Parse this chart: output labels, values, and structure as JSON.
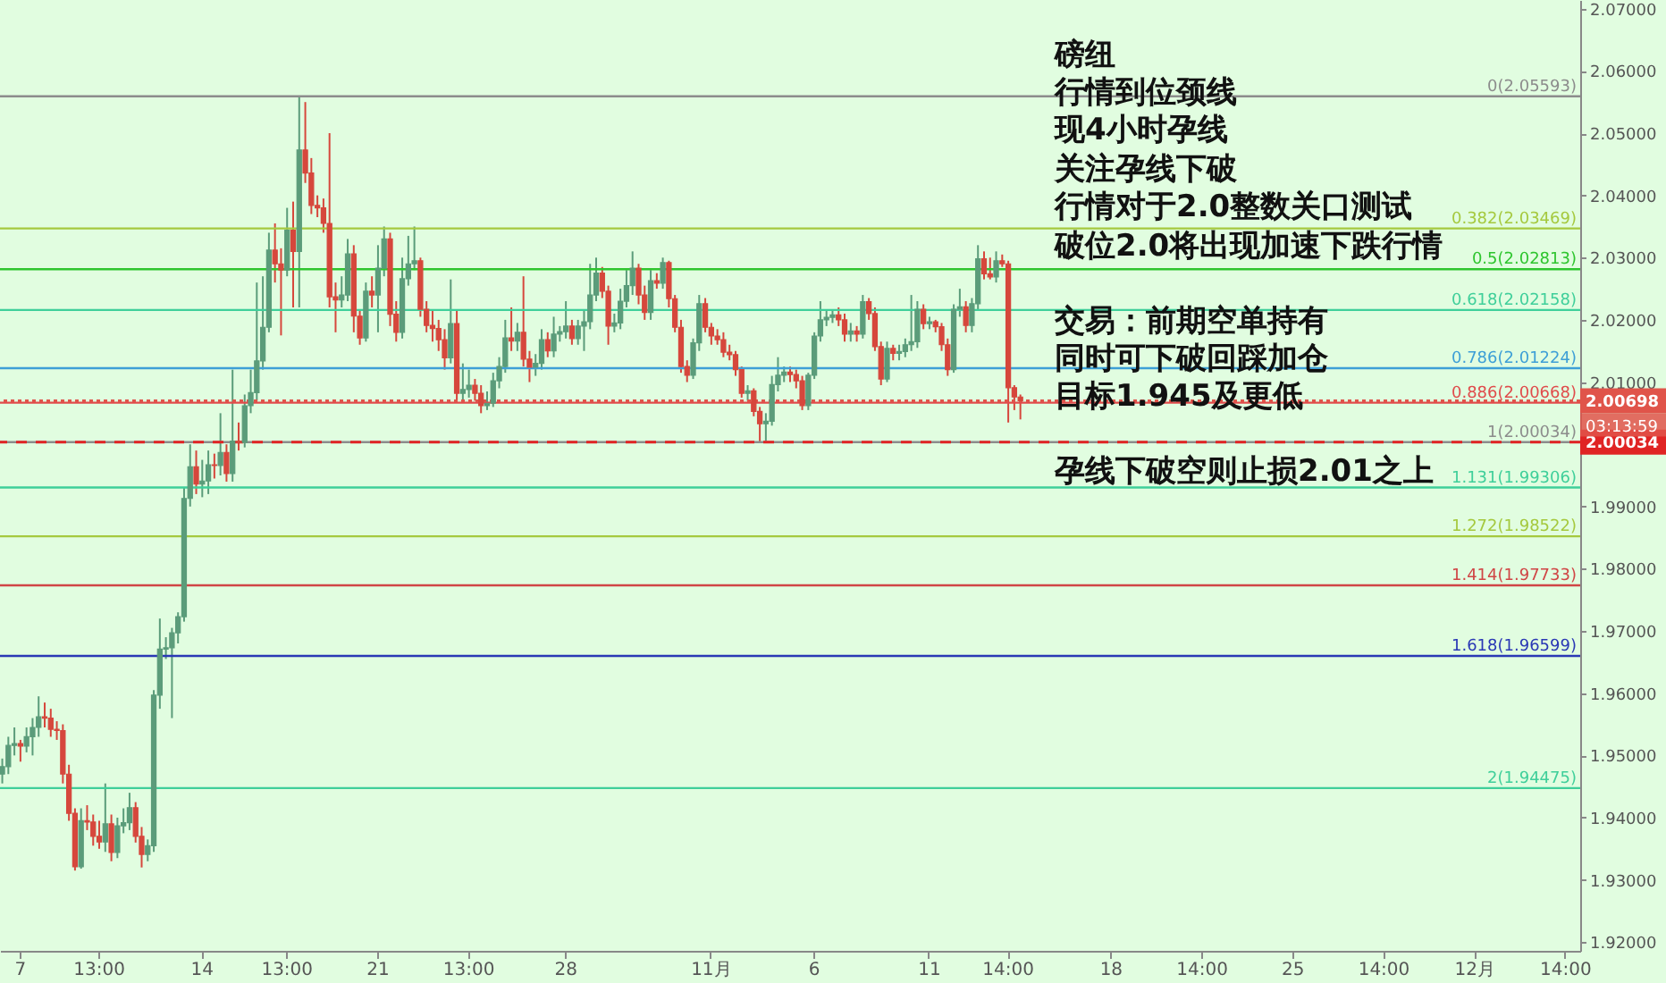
{
  "chart_data": {
    "type": "candlestick",
    "categories": [
      null,
      null,
      null,
      "7",
      null,
      null,
      null,
      null,
      null,
      null,
      null,
      null,
      null,
      null,
      null,
      null,
      "13:00",
      null,
      null,
      null,
      null,
      null,
      null,
      null,
      null,
      null,
      null,
      null,
      null,
      null,
      null,
      null,
      null,
      "14",
      null,
      null,
      null,
      null,
      null,
      null,
      null,
      null,
      null,
      null,
      null,
      null,
      null,
      "13:00",
      null,
      null,
      null,
      null,
      null,
      null,
      null,
      null,
      null,
      null,
      null,
      null,
      null,
      null,
      "21",
      null,
      null,
      null,
      null,
      null,
      null,
      null,
      null,
      null,
      null,
      null,
      null,
      null,
      null,
      "13:00",
      null,
      null,
      null,
      null,
      null,
      null,
      null,
      null,
      null,
      null,
      null,
      null,
      null,
      null,
      null,
      "28",
      null,
      null,
      null,
      null,
      null,
      null,
      null,
      null,
      null,
      null,
      null,
      null,
      null,
      null,
      null,
      null,
      null,
      null,
      null,
      null,
      null,
      null,
      null,
      "11月",
      null,
      null,
      null,
      null,
      null,
      null,
      null,
      null,
      null,
      null,
      null,
      null,
      null,
      null,
      null,
      null,
      "6",
      null,
      null,
      null,
      null,
      null,
      null,
      null,
      null,
      null,
      null,
      null,
      null,
      null,
      null,
      null,
      null,
      null,
      null,
      "11",
      null,
      null,
      null,
      null,
      null,
      null,
      null,
      null,
      null,
      null,
      null,
      null,
      "14:00",
      null,
      null,
      null,
      null,
      null,
      null,
      null,
      null,
      null,
      null,
      null,
      null,
      null,
      null,
      null,
      null,
      "18",
      null,
      null,
      null,
      null,
      null,
      null,
      null,
      null,
      null,
      null,
      null,
      null,
      null,
      null,
      "14:00",
      null,
      null,
      null,
      null,
      null,
      null,
      null,
      null,
      null,
      null,
      null,
      null,
      null,
      null,
      "25",
      null,
      null,
      null,
      null,
      null,
      null,
      null,
      null,
      null,
      null,
      null,
      null,
      null,
      null,
      "14:00",
      null,
      null,
      null,
      null,
      null,
      null,
      null,
      null,
      null,
      null,
      null,
      null,
      null,
      null,
      "12月",
      null,
      null,
      null,
      null,
      null,
      null,
      null,
      null,
      null,
      null,
      null,
      null,
      null,
      null,
      "14:00",
      null,
      null
    ],
    "ohlc": [
      [
        1.947,
        1.9495,
        1.9455,
        1.9482
      ],
      [
        1.9482,
        1.953,
        1.947,
        1.9516
      ],
      [
        1.9516,
        1.9545,
        1.95,
        1.9519
      ],
      [
        1.9519,
        1.9525,
        1.949,
        1.9515
      ],
      [
        1.9515,
        1.9545,
        1.9505,
        1.953
      ],
      [
        1.953,
        1.956,
        1.95,
        1.9545
      ],
      [
        1.9545,
        1.9595,
        1.953,
        1.9562
      ],
      [
        1.9562,
        1.9585,
        1.9545,
        1.956
      ],
      [
        1.956,
        1.9575,
        1.953,
        1.9542
      ],
      [
        1.9542,
        1.9555,
        1.9525,
        1.954
      ],
      [
        1.954,
        1.955,
        1.9455,
        1.947
      ],
      [
        1.947,
        1.9485,
        1.9395,
        1.9407
      ],
      [
        1.9407,
        1.9415,
        1.9315,
        1.9321
      ],
      [
        1.9321,
        1.9415,
        1.9318,
        1.9395
      ],
      [
        1.9395,
        1.942,
        1.938,
        1.9393
      ],
      [
        1.9393,
        1.9405,
        1.9355,
        1.937
      ],
      [
        1.937,
        1.9395,
        1.935,
        1.9361
      ],
      [
        1.9361,
        1.9455,
        1.9345,
        1.939
      ],
      [
        1.939,
        1.9405,
        1.933,
        1.9344
      ],
      [
        1.9344,
        1.94,
        1.9335,
        1.9387
      ],
      [
        1.9387,
        1.9415,
        1.9375,
        1.9392
      ],
      [
        1.9392,
        1.944,
        1.938,
        1.9416
      ],
      [
        1.9416,
        1.9425,
        1.936,
        1.937
      ],
      [
        1.937,
        1.9385,
        1.932,
        1.9341
      ],
      [
        1.9341,
        1.9365,
        1.933,
        1.9355
      ],
      [
        1.9355,
        1.9605,
        1.9345,
        1.9597
      ],
      [
        1.9597,
        1.972,
        1.9575,
        1.9671
      ],
      [
        1.9671,
        1.969,
        1.9655,
        1.9673
      ],
      [
        1.9673,
        1.9705,
        1.956,
        1.9697
      ],
      [
        1.9697,
        1.973,
        1.968,
        1.9723
      ],
      [
        1.9723,
        1.993,
        1.9715,
        1.9913
      ],
      [
        1.9913,
        2.0,
        1.99,
        1.9964
      ],
      [
        1.9964,
        1.999,
        1.992,
        1.9936
      ],
      [
        1.9936,
        1.9975,
        1.9915,
        1.9941
      ],
      [
        1.9941,
        1.999,
        1.992,
        1.9967
      ],
      [
        1.9967,
        1.9985,
        1.9945,
        1.9966
      ],
      [
        1.9966,
        2.005,
        1.995,
        1.9987
      ],
      [
        1.9987,
        2.0,
        1.994,
        1.9953
      ],
      [
        1.9953,
        2.012,
        1.994,
        2.0005
      ],
      [
        2.0005,
        2.0035,
        1.999,
        2.0003
      ],
      [
        2.0003,
        2.008,
        1.9995,
        2.0062
      ],
      [
        2.0062,
        2.012,
        2.005,
        2.0083
      ],
      [
        2.0083,
        2.026,
        2.007,
        2.0134
      ],
      [
        2.0134,
        2.027,
        2.012,
        2.0188
      ],
      [
        2.0188,
        2.034,
        2.018,
        2.0312
      ],
      [
        2.0312,
        2.0355,
        2.026,
        2.029
      ],
      [
        2.029,
        2.0315,
        2.0175,
        2.028
      ],
      [
        2.028,
        2.038,
        2.027,
        2.0344
      ],
      [
        2.0344,
        2.039,
        2.022,
        2.031
      ],
      [
        2.031,
        2.0559,
        2.022,
        2.0473
      ],
      [
        2.0473,
        2.055,
        2.042,
        2.0436
      ],
      [
        2.0436,
        2.046,
        2.037,
        2.0384
      ],
      [
        2.0384,
        2.04,
        2.0365,
        2.038
      ],
      [
        2.038,
        2.0395,
        2.034,
        2.0355
      ],
      [
        2.0355,
        2.05,
        2.022,
        2.0237
      ],
      [
        2.0237,
        2.026,
        2.018,
        2.0232
      ],
      [
        2.0232,
        2.027,
        2.022,
        2.024
      ],
      [
        2.024,
        2.033,
        2.023,
        2.0306
      ],
      [
        2.0306,
        2.032,
        2.018,
        2.0206
      ],
      [
        2.0206,
        2.0215,
        2.016,
        2.0171
      ],
      [
        2.0171,
        2.026,
        2.0165,
        2.0246
      ],
      [
        2.0246,
        2.027,
        2.022,
        2.024
      ],
      [
        2.024,
        2.032,
        2.018,
        2.0283
      ],
      [
        2.0283,
        2.035,
        2.027,
        2.033
      ],
      [
        2.033,
        2.034,
        2.019,
        2.0209
      ],
      [
        2.0209,
        2.023,
        2.0165,
        2.018
      ],
      [
        2.018,
        2.03,
        2.017,
        2.0266
      ],
      [
        2.0266,
        2.0335,
        2.0255,
        2.029
      ],
      [
        2.029,
        2.035,
        2.028,
        2.0295
      ],
      [
        2.0295,
        2.03,
        2.0205,
        2.0217
      ],
      [
        2.0217,
        2.023,
        2.018,
        2.0191
      ],
      [
        2.0191,
        2.0215,
        2.0165,
        2.0186
      ],
      [
        2.0186,
        2.02,
        2.015,
        2.0168
      ],
      [
        2.0168,
        2.0185,
        2.012,
        2.0139
      ],
      [
        2.0139,
        2.0265,
        2.013,
        2.0194
      ],
      [
        2.0194,
        2.0215,
        2.007,
        2.0082
      ],
      [
        2.0082,
        2.013,
        2.007,
        2.0088
      ],
      [
        2.0088,
        2.012,
        2.0075,
        2.0095
      ],
      [
        2.0095,
        2.0105,
        2.007,
        2.0082
      ],
      [
        2.0082,
        2.0095,
        2.005,
        2.0062
      ],
      [
        2.0062,
        2.0085,
        2.0055,
        2.0066
      ],
      [
        2.0066,
        2.0115,
        2.006,
        2.0102
      ],
      [
        2.0102,
        2.014,
        2.009,
        2.0125
      ],
      [
        2.0125,
        2.02,
        2.0115,
        2.0171
      ],
      [
        2.0171,
        2.022,
        2.015,
        2.0166
      ],
      [
        2.0166,
        2.0195,
        2.015,
        2.018
      ],
      [
        2.018,
        2.027,
        2.0125,
        2.0137
      ],
      [
        2.0137,
        2.015,
        2.01,
        2.0124
      ],
      [
        2.0124,
        2.0145,
        2.011,
        2.013
      ],
      [
        2.013,
        2.0185,
        2.012,
        2.0168
      ],
      [
        2.0168,
        2.018,
        2.014,
        2.015
      ],
      [
        2.015,
        2.0205,
        2.014,
        2.0177
      ],
      [
        2.0177,
        2.019,
        2.0165,
        2.0181
      ],
      [
        2.0181,
        2.023,
        2.017,
        2.019
      ],
      [
        2.019,
        2.02,
        2.016,
        2.017
      ],
      [
        2.017,
        2.02,
        2.016,
        2.019
      ],
      [
        2.019,
        2.0215,
        2.015,
        2.0197
      ],
      [
        2.0197,
        2.029,
        2.0185,
        2.024
      ],
      [
        2.024,
        2.03,
        2.023,
        2.0275
      ],
      [
        2.0275,
        2.0285,
        2.0235,
        2.0246
      ],
      [
        2.0246,
        2.0255,
        2.016,
        2.019
      ],
      [
        2.019,
        2.021,
        2.018,
        2.0195
      ],
      [
        2.0195,
        2.025,
        2.0185,
        2.023
      ],
      [
        2.023,
        2.028,
        2.022,
        2.0255
      ],
      [
        2.0255,
        2.031,
        2.024,
        2.0283
      ],
      [
        2.0283,
        2.029,
        2.0225,
        2.024
      ],
      [
        2.024,
        2.0255,
        2.02,
        2.0212
      ],
      [
        2.0212,
        2.028,
        2.02,
        2.0263
      ],
      [
        2.0263,
        2.0275,
        2.025,
        2.0259
      ],
      [
        2.0259,
        2.03,
        2.025,
        2.0292
      ],
      [
        2.0292,
        2.0295,
        2.022,
        2.0234
      ],
      [
        2.0234,
        2.024,
        2.018,
        2.0188
      ],
      [
        2.0188,
        2.02,
        2.0115,
        2.0125
      ],
      [
        2.0125,
        2.0135,
        2.01,
        2.0111
      ],
      [
        2.0111,
        2.017,
        2.0105,
        2.0163
      ],
      [
        2.0163,
        2.024,
        2.015,
        2.0226
      ],
      [
        2.0226,
        2.0235,
        2.018,
        2.0188
      ],
      [
        2.0188,
        2.0195,
        2.016,
        2.0174
      ],
      [
        2.0174,
        2.0185,
        2.016,
        2.0168
      ],
      [
        2.0168,
        2.018,
        2.014,
        2.0148
      ],
      [
        2.0148,
        2.016,
        2.0135,
        2.0144
      ],
      [
        2.0144,
        2.015,
        2.011,
        2.012
      ],
      [
        2.012,
        2.0125,
        2.0075,
        2.0082
      ],
      [
        2.0082,
        2.0095,
        2.007,
        2.0086
      ],
      [
        2.0086,
        2.009,
        2.0045,
        2.0053
      ],
      [
        2.0053,
        2.006,
        2.0003,
        2.0033
      ],
      [
        2.0033,
        2.005,
        2.0005,
        2.0037
      ],
      [
        2.0037,
        2.011,
        2.003,
        2.0096
      ],
      [
        2.0096,
        2.014,
        2.0085,
        2.0111
      ],
      [
        2.0111,
        2.0125,
        2.01,
        2.0116
      ],
      [
        2.0116,
        2.0125,
        2.01,
        2.0112
      ],
      [
        2.0112,
        2.012,
        2.009,
        2.0102
      ],
      [
        2.0102,
        2.011,
        2.0055,
        2.0062
      ],
      [
        2.0062,
        2.0115,
        2.0055,
        2.0111
      ],
      [
        2.0111,
        2.018,
        2.0105,
        2.0174
      ],
      [
        2.0174,
        2.023,
        2.0165,
        2.02
      ],
      [
        2.02,
        2.0215,
        2.019,
        2.0204
      ],
      [
        2.0204,
        2.0215,
        2.0195,
        2.0208
      ],
      [
        2.0208,
        2.022,
        2.019,
        2.02
      ],
      [
        2.02,
        2.021,
        2.0165,
        2.0177
      ],
      [
        2.0177,
        2.0195,
        2.0165,
        2.0182
      ],
      [
        2.0182,
        2.019,
        2.0165,
        2.0177
      ],
      [
        2.0177,
        2.024,
        2.017,
        2.0229
      ],
      [
        2.0229,
        2.0235,
        2.02,
        2.021
      ],
      [
        2.021,
        2.022,
        2.015,
        2.0157
      ],
      [
        2.0157,
        2.0165,
        2.0095,
        2.0105
      ],
      [
        2.0105,
        2.0165,
        2.01,
        2.0154
      ],
      [
        2.0154,
        2.016,
        2.0135,
        2.0146
      ],
      [
        2.0146,
        2.016,
        2.0135,
        2.0149
      ],
      [
        2.0149,
        2.017,
        2.014,
        2.016
      ],
      [
        2.016,
        2.024,
        2.015,
        2.0165
      ],
      [
        2.0165,
        2.023,
        2.0155,
        2.0217
      ],
      [
        2.0217,
        2.0225,
        2.0185,
        2.0194
      ],
      [
        2.0194,
        2.0205,
        2.0185,
        2.0197
      ],
      [
        2.0197,
        2.02,
        2.018,
        2.0189
      ],
      [
        2.0189,
        2.0195,
        2.015,
        2.016
      ],
      [
        2.016,
        2.017,
        2.011,
        2.012
      ],
      [
        2.012,
        2.0225,
        2.0115,
        2.0217
      ],
      [
        2.0217,
        2.025,
        2.0205,
        2.0221
      ],
      [
        2.0221,
        2.023,
        2.018,
        2.0191
      ],
      [
        2.0191,
        2.0235,
        2.018,
        2.0226
      ],
      [
        2.0226,
        2.032,
        2.0215,
        2.0298
      ],
      [
        2.0298,
        2.031,
        2.0265,
        2.0274
      ],
      [
        2.0274,
        2.03,
        2.0265,
        2.0269
      ],
      [
        2.0269,
        2.031,
        2.026,
        2.0295
      ],
      [
        2.0295,
        2.0305,
        2.0285,
        2.029
      ],
      [
        2.029,
        2.0295,
        2.0035,
        2.0091
      ],
      [
        2.0091,
        2.0095,
        2.0055,
        2.0076
      ],
      [
        2.0076,
        2.008,
        2.004,
        2.007
      ],
      null,
      null,
      null,
      null,
      null,
      null,
      null,
      null,
      null,
      null,
      null,
      null,
      null,
      null,
      null,
      null,
      null,
      null,
      null,
      null,
      null,
      null,
      null,
      null,
      null,
      null,
      null,
      null,
      null,
      null,
      null,
      null,
      null,
      null,
      null,
      null,
      null,
      null,
      null,
      null,
      null,
      null,
      null,
      null,
      null,
      null,
      null,
      null,
      null,
      null,
      null,
      null,
      null,
      null,
      null,
      null,
      null,
      null,
      null,
      null,
      null,
      null,
      null,
      null,
      null,
      null,
      null,
      null,
      null,
      null,
      null,
      null,
      null,
      null,
      null,
      null,
      null,
      null,
      null,
      null,
      null,
      null,
      null,
      null,
      null,
      null,
      null,
      null,
      null,
      null,
      null,
      null
    ],
    "colors": [
      "#5b9c7a",
      "#5b9c7a",
      "#5b9c7a",
      "#d6473c",
      "#5b9c7a",
      "#5b9c7a",
      "#5b9c7a",
      "#d6473c",
      "#d6473c",
      "#d6473c",
      "#d6473c",
      "#d6473c",
      "#d6473c",
      "#5b9c7a",
      "#d6473c",
      "#d6473c",
      "#d6473c",
      "#5b9c7a",
      "#d6473c",
      "#5b9c7a",
      "#5b9c7a",
      "#5b9c7a",
      "#d6473c",
      "#d6473c",
      "#5b9c7a",
      "#5b9c7a",
      "#5b9c7a",
      "#5b9c7a",
      "#5b9c7a",
      "#5b9c7a",
      "#5b9c7a",
      "#5b9c7a",
      "#d6473c",
      "#5b9c7a",
      "#5b9c7a",
      "#d6473c",
      "#5b9c7a",
      "#d6473c",
      "#5b9c7a",
      "#d6473c",
      "#5b9c7a",
      "#5b9c7a",
      "#5b9c7a",
      "#5b9c7a",
      "#5b9c7a",
      "#d6473c",
      "#d6473c",
      "#5b9c7a",
      "#d6473c",
      "#5b9c7a",
      "#d6473c",
      "#d6473c",
      "#d6473c",
      "#d6473c",
      "#d6473c",
      "#d6473c",
      "#5b9c7a",
      "#5b9c7a",
      "#d6473c",
      "#d6473c",
      "#5b9c7a",
      "#d6473c",
      "#5b9c7a",
      "#5b9c7a",
      "#d6473c",
      "#d6473c",
      "#5b9c7a",
      "#5b9c7a",
      "#5b9c7a",
      "#d6473c",
      "#d6473c",
      "#d6473c",
      "#d6473c",
      "#d6473c",
      "#5b9c7a",
      "#d6473c",
      "#5b9c7a",
      "#5b9c7a",
      "#d6473c",
      "#d6473c",
      "#5b9c7a",
      "#5b9c7a",
      "#5b9c7a",
      "#5b9c7a",
      "#d6473c",
      "#5b9c7a",
      "#d6473c",
      "#d6473c",
      "#5b9c7a",
      "#5b9c7a",
      "#d6473c",
      "#5b9c7a",
      "#5b9c7a",
      "#5b9c7a",
      "#d6473c",
      "#5b9c7a",
      "#5b9c7a",
      "#5b9c7a",
      "#5b9c7a",
      "#d6473c",
      "#d6473c",
      "#5b9c7a",
      "#5b9c7a",
      "#5b9c7a",
      "#5b9c7a",
      "#d6473c",
      "#d6473c",
      "#5b9c7a",
      "#d6473c",
      "#5b9c7a",
      "#d6473c",
      "#d6473c",
      "#d6473c",
      "#d6473c",
      "#5b9c7a",
      "#5b9c7a",
      "#d6473c",
      "#d6473c",
      "#d6473c",
      "#d6473c",
      "#d6473c",
      "#d6473c",
      "#d6473c",
      "#5b9c7a",
      "#d6473c",
      "#d6473c",
      "#5b9c7a",
      "#5b9c7a",
      "#5b9c7a",
      "#5b9c7a",
      "#d6473c",
      "#d6473c",
      "#d6473c",
      "#5b9c7a",
      "#5b9c7a",
      "#5b9c7a",
      "#5b9c7a",
      "#5b9c7a",
      "#d6473c",
      "#d6473c",
      "#5b9c7a",
      "#d6473c",
      "#5b9c7a",
      "#d6473c",
      "#d6473c",
      "#d6473c",
      "#5b9c7a",
      "#d6473c",
      "#5b9c7a",
      "#5b9c7a",
      "#5b9c7a",
      "#5b9c7a",
      "#d6473c",
      "#5b9c7a",
      "#d6473c",
      "#d6473c",
      "#d6473c",
      "#5b9c7a",
      "#5b9c7a",
      "#d6473c",
      "#5b9c7a",
      "#5b9c7a",
      "#d6473c",
      "#d6473c",
      "#5b9c7a",
      "#d6473c",
      "#d6473c",
      "#d6473c",
      "#d6473c",
      null,
      null,
      null,
      null,
      null,
      null,
      null,
      null,
      null,
      null,
      null,
      null,
      null,
      null,
      null,
      null,
      null,
      null,
      null,
      null,
      null,
      null,
      null,
      null,
      null,
      null,
      null,
      null,
      null,
      null,
      null,
      null,
      null,
      null,
      null,
      null,
      null,
      null,
      null,
      null,
      null,
      null,
      null,
      null,
      null,
      null,
      null,
      null,
      null,
      null,
      null,
      null,
      null,
      null,
      null,
      null,
      null,
      null,
      null,
      null,
      null,
      null,
      null,
      null,
      null,
      null,
      null,
      null,
      null,
      null,
      null,
      null,
      null,
      null,
      null,
      null,
      null,
      null,
      null,
      null,
      null,
      null,
      null,
      null,
      null,
      null,
      null,
      null,
      null,
      null,
      null,
      null
    ],
    "ylim": [
      1.9186,
      2.0714
    ],
    "yticks": [
      {
        "value": 1.92,
        "label": "1.92000"
      },
      {
        "value": 1.93,
        "label": "1.93000"
      },
      {
        "value": 1.94,
        "label": "1.94000"
      },
      {
        "value": 1.95,
        "label": "1.95000"
      },
      {
        "value": 1.96,
        "label": "1.96000"
      },
      {
        "value": 1.97,
        "label": "1.97000"
      },
      {
        "value": 1.98,
        "label": "1.98000"
      },
      {
        "value": 1.99,
        "label": "1.99000"
      },
      {
        "value": 2.0,
        "label": null
      },
      {
        "value": 2.01,
        "label": "2.01000"
      },
      {
        "value": 2.02,
        "label": "2.02000"
      },
      {
        "value": 2.03,
        "label": "2.03000"
      },
      {
        "value": 2.04,
        "label": "2.04000"
      },
      {
        "value": 2.05,
        "label": "2.05000"
      },
      {
        "value": 2.06,
        "label": "2.06000"
      },
      {
        "value": 2.07,
        "label": "2.07000"
      }
    ],
    "ref_lines": [
      {
        "axis": "y",
        "value": 2.05593,
        "label": "0(2.05593)",
        "color": "#8c8c8c"
      },
      {
        "axis": "y",
        "value": 2.03469,
        "label": "0.382(2.03469)",
        "color": "#a5c93e"
      },
      {
        "axis": "y",
        "value": 2.02813,
        "label": "0.5(2.02813)",
        "color": "#2ec52e"
      },
      {
        "axis": "y",
        "value": 2.02158,
        "label": "0.618(2.02158)",
        "color": "#3fcf9a"
      },
      {
        "axis": "y",
        "value": 2.01224,
        "label": "0.786(2.01224)",
        "color": "#3d9fd6"
      },
      {
        "axis": "y",
        "value": 2.00668,
        "label": "0.886(2.00668)",
        "color": "#e04b4b"
      },
      {
        "axis": "y",
        "value": 2.00034,
        "label": "1(2.00034)",
        "color": "#8c8c8c"
      },
      {
        "axis": "y",
        "value": 1.99306,
        "label": "1.131(1.99306)",
        "color": "#3fcf9a"
      },
      {
        "axis": "y",
        "value": 1.98522,
        "label": "1.272(1.98522)",
        "color": "#a5c93e"
      },
      {
        "axis": "y",
        "value": 1.97733,
        "label": "1.414(1.97733)",
        "color": "#d04545"
      },
      {
        "axis": "y",
        "value": 1.96599,
        "label": "1.618(1.96599)",
        "color": "#2a38b5"
      },
      {
        "axis": "y",
        "value": 1.94475,
        "label": "2(1.94475)",
        "color": "#3fcf9a"
      },
      {
        "axis": "y",
        "value": 2.00698,
        "label": "2.00698",
        "color": "#e0544a",
        "line_style": "dotted"
      },
      {
        "axis": "y",
        "value": 2.00034,
        "label": "2.00034",
        "color": "#e02424",
        "line_style": "dashed"
      }
    ],
    "annotations": [
      "磅纽",
      "行情到位颈线",
      "现4小时孕线",
      "关注孕线下破",
      "行情对于2.0整数关口测试",
      "破位2.0将出现加速下跌行情",
      "交易：前期空单持有",
      "同时可下破回踩加仓",
      "目标1.945及更低",
      "孕线下破空则止损2.01之上",
      "03:13:59"
    ]
  }
}
